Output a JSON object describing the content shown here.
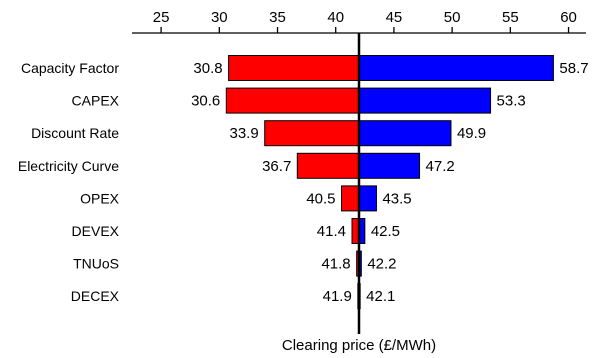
{
  "chart_data": {
    "type": "bar",
    "subtype": "tornado",
    "title": "",
    "xlabel": "Clearing price (£/MWh)",
    "ylabel": "",
    "xlim": [
      22.5,
      61.5
    ],
    "xticks": [
      25,
      30,
      35,
      40,
      45,
      50,
      55,
      60
    ],
    "x_axis_position": "top",
    "baseline": 42,
    "grid": false,
    "legend": "none",
    "colors": {
      "low": "#ff0000",
      "high": "#0000ff",
      "edge": "#000000"
    },
    "categories": [
      "Capacity Factor",
      "CAPEX",
      "Discount Rate",
      "Electricity Curve",
      "OPEX",
      "DEVEX",
      "TNUoS",
      "DECEX"
    ],
    "low_values": [
      30.8,
      30.6,
      33.9,
      36.7,
      40.5,
      41.4,
      41.8,
      41.9
    ],
    "high_values": [
      58.7,
      53.3,
      49.9,
      47.2,
      43.5,
      42.5,
      42.2,
      42.1
    ],
    "low_labels": [
      "30.8",
      "30.6",
      "33.9",
      "36.7",
      "40.5",
      "41.4",
      "41.8",
      "41.9"
    ],
    "high_labels": [
      "58.7",
      "53.3",
      "49.9",
      "47.2",
      "43.5",
      "42.5",
      "42.2",
      "42.1"
    ]
  }
}
